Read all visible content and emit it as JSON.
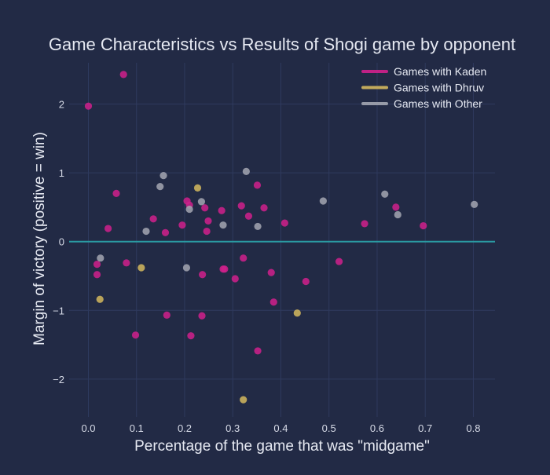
{
  "colors": {
    "background": "#222a45",
    "plot_background": "#222a45",
    "grid": "#2f3a5e",
    "text": "#e6e9f2",
    "tick_text": "#d7dbe7",
    "zero_line": "#2a9ba3"
  },
  "chart_data": {
    "type": "scatter",
    "title": "Game Characteristics vs Results of Shogi game by opponent",
    "xlabel": "Percentage of the game that was \"midgame\"",
    "ylabel": "Margin of victory (positive = win)",
    "xlim": [
      -0.04,
      0.845
    ],
    "ylim": [
      -2.55,
      2.6
    ],
    "xticks": [
      0,
      0.1,
      0.2,
      0.3,
      0.4,
      0.5,
      0.6,
      0.7,
      0.8
    ],
    "xtick_labels": [
      "0.0",
      "0.1",
      "0.2",
      "0.3",
      "0.4",
      "0.5",
      "0.6",
      "0.7",
      "0.8"
    ],
    "yticks": [
      -2,
      -1,
      0,
      1,
      2
    ],
    "ytick_labels": [
      "−2",
      "−1",
      "0",
      "1",
      "2"
    ],
    "grid": true,
    "legend_position": "top-right",
    "reference_line": {
      "y": 0
    },
    "series": [
      {
        "name": "Games with Kaden",
        "color": "#d0208c",
        "points": [
          [
            0.0,
            1.97
          ],
          [
            0.073,
            2.43
          ],
          [
            0.058,
            0.7
          ],
          [
            0.041,
            0.19
          ],
          [
            0.018,
            -0.33
          ],
          [
            0.018,
            -0.48
          ],
          [
            0.079,
            -0.31
          ],
          [
            0.098,
            -1.36
          ],
          [
            0.135,
            0.33
          ],
          [
            0.16,
            0.13
          ],
          [
            0.163,
            -1.07
          ],
          [
            0.195,
            0.24
          ],
          [
            0.205,
            0.59
          ],
          [
            0.21,
            0.53
          ],
          [
            0.213,
            -1.37
          ],
          [
            0.236,
            -1.08
          ],
          [
            0.237,
            -0.48
          ],
          [
            0.242,
            0.49
          ],
          [
            0.246,
            0.15
          ],
          [
            0.249,
            0.3
          ],
          [
            0.277,
            0.45
          ],
          [
            0.28,
            -0.4
          ],
          [
            0.283,
            -0.4
          ],
          [
            0.305,
            -0.54
          ],
          [
            0.318,
            0.52
          ],
          [
            0.322,
            -0.24
          ],
          [
            0.333,
            0.37
          ],
          [
            0.351,
            0.82
          ],
          [
            0.352,
            -1.59
          ],
          [
            0.365,
            0.49
          ],
          [
            0.38,
            -0.45
          ],
          [
            0.385,
            -0.88
          ],
          [
            0.408,
            0.27
          ],
          [
            0.452,
            -0.58
          ],
          [
            0.521,
            -0.29
          ],
          [
            0.574,
            0.26
          ],
          [
            0.639,
            0.5
          ],
          [
            0.696,
            0.23
          ]
        ]
      },
      {
        "name": "Games with Dhruv",
        "color": "#d4b85e",
        "points": [
          [
            0.024,
            -0.84
          ],
          [
            0.11,
            -0.38
          ],
          [
            0.227,
            0.78
          ],
          [
            0.322,
            -2.3
          ],
          [
            0.434,
            -1.04
          ]
        ]
      },
      {
        "name": "Games with Other",
        "color": "#a3a6b1",
        "points": [
          [
            0.025,
            -0.24
          ],
          [
            0.12,
            0.15
          ],
          [
            0.149,
            0.8
          ],
          [
            0.156,
            0.96
          ],
          [
            0.204,
            -0.38
          ],
          [
            0.21,
            0.47
          ],
          [
            0.235,
            0.58
          ],
          [
            0.28,
            0.24
          ],
          [
            0.328,
            1.02
          ],
          [
            0.352,
            0.22
          ],
          [
            0.488,
            0.59
          ],
          [
            0.616,
            0.69
          ],
          [
            0.643,
            0.39
          ],
          [
            0.802,
            0.54
          ]
        ]
      }
    ]
  }
}
